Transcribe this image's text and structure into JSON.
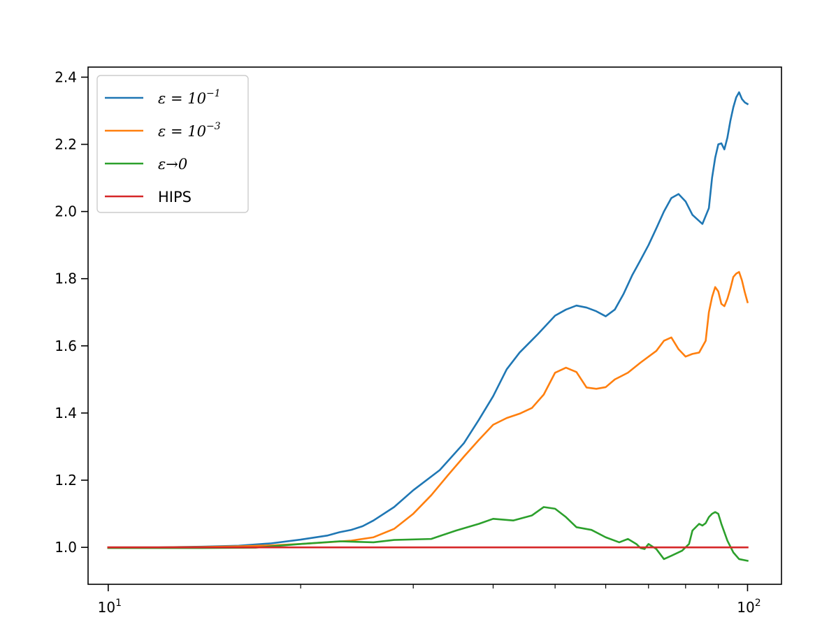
{
  "chart_data": {
    "type": "line",
    "title": "",
    "xlabel": "",
    "ylabel": "",
    "xscale": "log",
    "xlim": [
      9.3,
      113
    ],
    "ylim": [
      0.89,
      2.43
    ],
    "grid": false,
    "legend_position": "top-left",
    "x_ticks": [
      {
        "value": 10,
        "base": "10",
        "exp": "1"
      },
      {
        "value": 100,
        "base": "10",
        "exp": "2"
      }
    ],
    "y_ticks": [
      {
        "value": 1.0,
        "label": "1.0"
      },
      {
        "value": 1.2,
        "label": "1.2"
      },
      {
        "value": 1.4,
        "label": "1.4"
      },
      {
        "value": 1.6,
        "label": "1.6"
      },
      {
        "value": 1.8,
        "label": "1.8"
      },
      {
        "value": 2.0,
        "label": "2.0"
      },
      {
        "value": 2.2,
        "label": "2.2"
      },
      {
        "value": 2.4,
        "label": "2.4"
      }
    ],
    "series": [
      {
        "name": "ε = 10⁻¹",
        "legend_base": "ε = 10",
        "legend_sup": "−1",
        "color": "#1f77b4",
        "points": [
          [
            10,
            1.0
          ],
          [
            12,
            1.0
          ],
          [
            14,
            1.002
          ],
          [
            16,
            1.005
          ],
          [
            18,
            1.012
          ],
          [
            20,
            1.023
          ],
          [
            22,
            1.035
          ],
          [
            23,
            1.045
          ],
          [
            24,
            1.052
          ],
          [
            25,
            1.063
          ],
          [
            26,
            1.08
          ],
          [
            28,
            1.12
          ],
          [
            30,
            1.17
          ],
          [
            33,
            1.23
          ],
          [
            36,
            1.31
          ],
          [
            38,
            1.38
          ],
          [
            40,
            1.45
          ],
          [
            42,
            1.53
          ],
          [
            44,
            1.58
          ],
          [
            47,
            1.635
          ],
          [
            50,
            1.69
          ],
          [
            52,
            1.708
          ],
          [
            54,
            1.72
          ],
          [
            56,
            1.714
          ],
          [
            58,
            1.703
          ],
          [
            60,
            1.688
          ],
          [
            62,
            1.708
          ],
          [
            64,
            1.755
          ],
          [
            66,
            1.81
          ],
          [
            68,
            1.855
          ],
          [
            70,
            1.9
          ],
          [
            72,
            1.95
          ],
          [
            74,
            2.0
          ],
          [
            76,
            2.04
          ],
          [
            78,
            2.052
          ],
          [
            80,
            2.03
          ],
          [
            82,
            1.99
          ],
          [
            85,
            1.963
          ],
          [
            87,
            2.01
          ],
          [
            88,
            2.1
          ],
          [
            89,
            2.16
          ],
          [
            90,
            2.2
          ],
          [
            91,
            2.203
          ],
          [
            92,
            2.185
          ],
          [
            93,
            2.22
          ],
          [
            94,
            2.27
          ],
          [
            95,
            2.31
          ],
          [
            96,
            2.34
          ],
          [
            97,
            2.355
          ],
          [
            98,
            2.335
          ],
          [
            99,
            2.325
          ],
          [
            100,
            2.32
          ]
        ]
      },
      {
        "name": "ε = 10⁻³",
        "legend_base": "ε = 10",
        "legend_sup": "−3",
        "color": "#ff7f0e",
        "points": [
          [
            10,
            1.0
          ],
          [
            12,
            1.0
          ],
          [
            14,
            1.001
          ],
          [
            16,
            1.003
          ],
          [
            18,
            1.006
          ],
          [
            20,
            1.01
          ],
          [
            22,
            1.015
          ],
          [
            24,
            1.02
          ],
          [
            26,
            1.03
          ],
          [
            28,
            1.055
          ],
          [
            30,
            1.1
          ],
          [
            32,
            1.155
          ],
          [
            34,
            1.215
          ],
          [
            36,
            1.27
          ],
          [
            38,
            1.32
          ],
          [
            40,
            1.365
          ],
          [
            42,
            1.385
          ],
          [
            44,
            1.398
          ],
          [
            46,
            1.415
          ],
          [
            48,
            1.455
          ],
          [
            50,
            1.52
          ],
          [
            52,
            1.535
          ],
          [
            54,
            1.522
          ],
          [
            56,
            1.476
          ],
          [
            58,
            1.472
          ],
          [
            60,
            1.477
          ],
          [
            62,
            1.5
          ],
          [
            65,
            1.52
          ],
          [
            68,
            1.55
          ],
          [
            72,
            1.585
          ],
          [
            74,
            1.615
          ],
          [
            76,
            1.625
          ],
          [
            78,
            1.59
          ],
          [
            80,
            1.568
          ],
          [
            82,
            1.576
          ],
          [
            84,
            1.58
          ],
          [
            86,
            1.615
          ],
          [
            87,
            1.7
          ],
          [
            88,
            1.745
          ],
          [
            89,
            1.775
          ],
          [
            90,
            1.762
          ],
          [
            91,
            1.725
          ],
          [
            92,
            1.718
          ],
          [
            93,
            1.74
          ],
          [
            94,
            1.77
          ],
          [
            95,
            1.805
          ],
          [
            96,
            1.815
          ],
          [
            97,
            1.82
          ],
          [
            98,
            1.795
          ],
          [
            99,
            1.76
          ],
          [
            100,
            1.73
          ]
        ]
      },
      {
        "name": "ε→0",
        "legend_base": "ε→0",
        "legend_sup": "",
        "color": "#2ca02c",
        "points": [
          [
            10,
            0.998
          ],
          [
            14,
            0.998
          ],
          [
            17,
            0.999
          ],
          [
            20,
            1.01
          ],
          [
            23,
            1.018
          ],
          [
            26,
            1.015
          ],
          [
            28,
            1.022
          ],
          [
            32,
            1.025
          ],
          [
            35,
            1.05
          ],
          [
            38,
            1.07
          ],
          [
            40,
            1.085
          ],
          [
            43,
            1.08
          ],
          [
            46,
            1.095
          ],
          [
            48,
            1.12
          ],
          [
            50,
            1.115
          ],
          [
            52,
            1.09
          ],
          [
            54,
            1.06
          ],
          [
            57,
            1.052
          ],
          [
            60,
            1.03
          ],
          [
            63,
            1.015
          ],
          [
            65,
            1.025
          ],
          [
            67,
            1.01
          ],
          [
            68,
            0.998
          ],
          [
            69,
            0.995
          ],
          [
            70,
            1.01
          ],
          [
            72,
            0.995
          ],
          [
            74,
            0.965
          ],
          [
            76,
            0.975
          ],
          [
            79,
            0.99
          ],
          [
            81,
            1.01
          ],
          [
            82,
            1.05
          ],
          [
            84,
            1.07
          ],
          [
            85,
            1.065
          ],
          [
            86,
            1.072
          ],
          [
            87,
            1.09
          ],
          [
            88,
            1.1
          ],
          [
            89,
            1.105
          ],
          [
            90,
            1.1
          ],
          [
            91,
            1.07
          ],
          [
            93,
            1.02
          ],
          [
            95,
            0.985
          ],
          [
            97,
            0.965
          ],
          [
            100,
            0.96
          ]
        ]
      },
      {
        "name": "HIPS",
        "legend_base": "HIPS",
        "legend_sup": "",
        "color": "#d62728",
        "points": [
          [
            10,
            1.0
          ],
          [
            100,
            1.0
          ]
        ]
      }
    ]
  }
}
